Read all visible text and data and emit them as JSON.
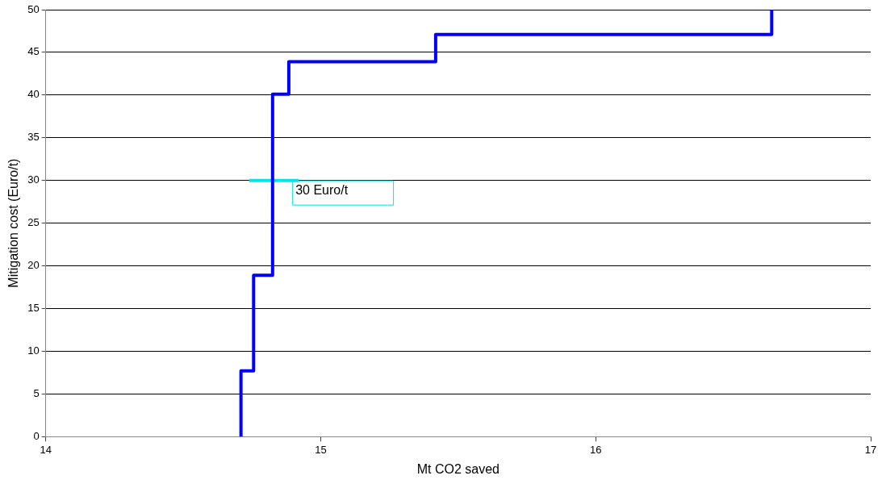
{
  "chart_data": {
    "type": "line",
    "xlabel": "Mt CO2 saved",
    "ylabel": "Mitigation cost (Euro/t)",
    "series": [
      {
        "color": "#0000ff",
        "x": [
          14.71,
          14.71,
          14.756,
          14.756,
          14.825,
          14.825,
          14.884,
          14.884,
          15.418,
          15.418,
          16.64,
          16.64
        ],
        "values": [
          0,
          7.7,
          7.7,
          18.9,
          18.9,
          40.1,
          40.1,
          43.9,
          43.9,
          47.1,
          47.1,
          50
        ]
      },
      {
        "color": "#00e5e5",
        "x": [
          14.74,
          14.92
        ],
        "values": [
          30,
          30
        ]
      }
    ],
    "annotations": [
      {
        "text": "30 Euro/t",
        "x": 14.92,
        "y": 30
      }
    ],
    "xlim": [
      14,
      17
    ],
    "xticks": [
      14,
      15,
      16,
      17
    ],
    "ylim": [
      0,
      50
    ],
    "yticks": [
      0,
      5,
      10,
      15,
      20,
      25,
      30,
      35,
      40,
      45,
      50
    ],
    "grid": "y",
    "legend": false,
    "marker": "none",
    "line_style": "solid"
  }
}
